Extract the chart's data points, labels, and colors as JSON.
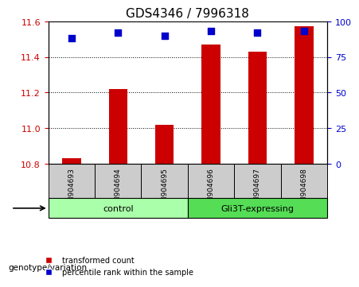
{
  "title": "GDS4346 / 7996318",
  "samples": [
    "GSM904693",
    "GSM904694",
    "GSM904695",
    "GSM904696",
    "GSM904697",
    "GSM904698"
  ],
  "transformed_counts": [
    10.83,
    11.22,
    11.02,
    11.47,
    11.43,
    11.57
  ],
  "percentile_ranks": [
    88,
    92,
    90,
    93,
    92,
    93
  ],
  "ylim_left": [
    10.8,
    11.6
  ],
  "ylim_right": [
    0,
    100
  ],
  "yticks_left": [
    10.8,
    11.0,
    11.2,
    11.4,
    11.6
  ],
  "yticks_right": [
    0,
    25,
    50,
    75,
    100
  ],
  "bar_color": "#cc0000",
  "dot_color": "#0000cc",
  "groups": [
    {
      "label": "control",
      "indices": [
        0,
        1,
        2
      ],
      "color": "#aaffaa"
    },
    {
      "label": "Gli3T-expressing",
      "indices": [
        3,
        4,
        5
      ],
      "color": "#55dd55"
    }
  ],
  "group_row_color": "#aaffaa",
  "tick_color_left": "#cc0000",
  "tick_color_right": "#0000cc",
  "legend_items": [
    {
      "color": "#cc0000",
      "label": "transformed count"
    },
    {
      "color": "#0000cc",
      "label": "percentile rank within the sample"
    }
  ],
  "genotype_label": "genotype/variation",
  "xticklabel_rotation": -90,
  "bar_width": 0.4,
  "dot_size": 30,
  "grid_style": "dotted",
  "grid_color": "#000000",
  "background_plot": "#ffffff",
  "sample_cell_color": "#cccccc"
}
